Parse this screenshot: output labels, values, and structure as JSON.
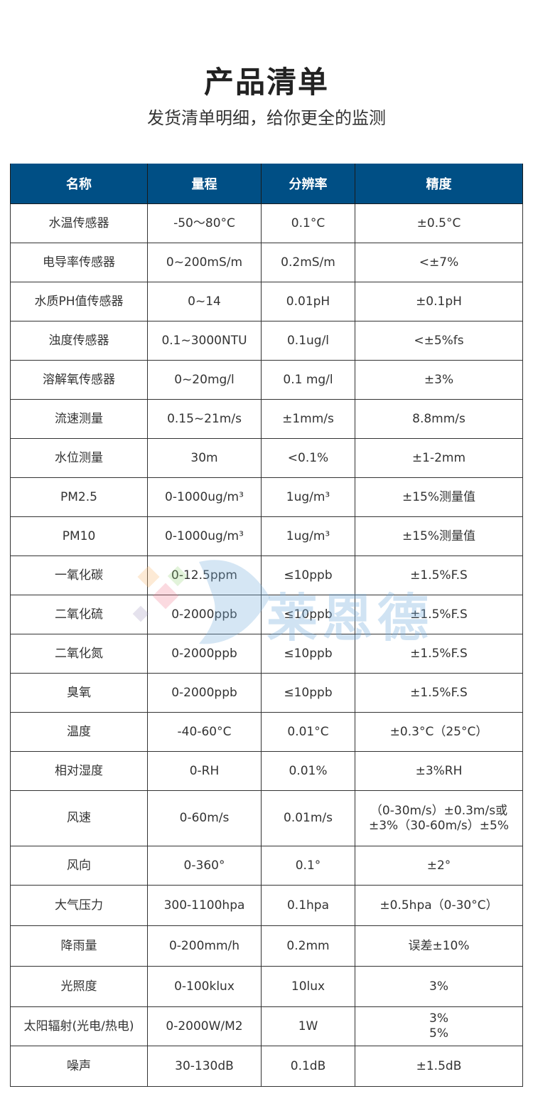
{
  "header": {
    "title": "产品清单",
    "subtitle": "发货清单明细，给你更全的监测"
  },
  "table": {
    "header_color": "#004f85",
    "columns": [
      "名称",
      "量程",
      "分辨率",
      "精度"
    ],
    "rows": [
      [
        "水温传感器",
        "-50～80°C",
        "0.1°C",
        "±0.5°C"
      ],
      [
        "电导率传感器",
        "0~200mS/m",
        "0.2mS/m",
        "<±7%"
      ],
      [
        "水质PH值传感器",
        "0~14",
        "0.01pH",
        "±0.1pH"
      ],
      [
        "浊度传感器",
        "0.1~3000NTU",
        "0.1ug/l",
        "<±5%fs"
      ],
      [
        "溶解氧传感器",
        "0~20mg/l",
        "0.1  mg/l",
        "±3%"
      ],
      [
        "流速测量",
        "0.15~21m/s",
        "±1mm/s",
        "8.8mm/s"
      ],
      [
        "水位测量",
        "30m",
        "<0.1%",
        "±1-2mm"
      ],
      [
        "PM2.5",
        "0-1000ug/m³",
        "1ug/m³",
        "±15%测量值"
      ],
      [
        "PM10",
        "0-1000ug/m³",
        "1ug/m³",
        "±15%测量值"
      ],
      [
        "一氧化碳",
        "0-12.5ppm",
        "≤10ppb",
        "±1.5%F.S"
      ],
      [
        "二氧化硫",
        "0-2000ppb",
        "≤10ppb",
        "±1.5%F.S"
      ],
      [
        "二氧化氮",
        "0-2000ppb",
        "≤10ppb",
        "±1.5%F.S"
      ],
      [
        "臭氧",
        "0-2000ppb",
        "≤10ppb",
        "±1.5%F.S"
      ],
      [
        "温度",
        "-40-60°C",
        "0.01°C",
        "±0.3°C（25°C）"
      ],
      [
        "相对湿度",
        "0-RH",
        "0.01%",
        "±3%RH"
      ],
      [
        "风速",
        "0-60m/s",
        "0.01m/s",
        "（0-30m/s）±0.3m/s或\n±3%（30-60m/s）±5%"
      ],
      [
        "风向",
        "0-360°",
        "0.1°",
        "±2°"
      ],
      [
        "大气压力",
        "300-1100hpa",
        "0.1hpa",
        "±0.5hpa（0-30°C）"
      ],
      [
        "降雨量",
        "0-200mm/h",
        "0.2mm",
        "误差±10%"
      ],
      [
        "光照度",
        "0-100klux",
        "10lux",
        "3%"
      ],
      [
        "太阳辐射(光电/热电)",
        "0-2000W/M2",
        "1W",
        "3%\n5%"
      ],
      [
        "噪声",
        "30-130dB",
        "0.1dB",
        "±1.5dB"
      ]
    ]
  },
  "watermark": {
    "text": "莱恩德"
  }
}
